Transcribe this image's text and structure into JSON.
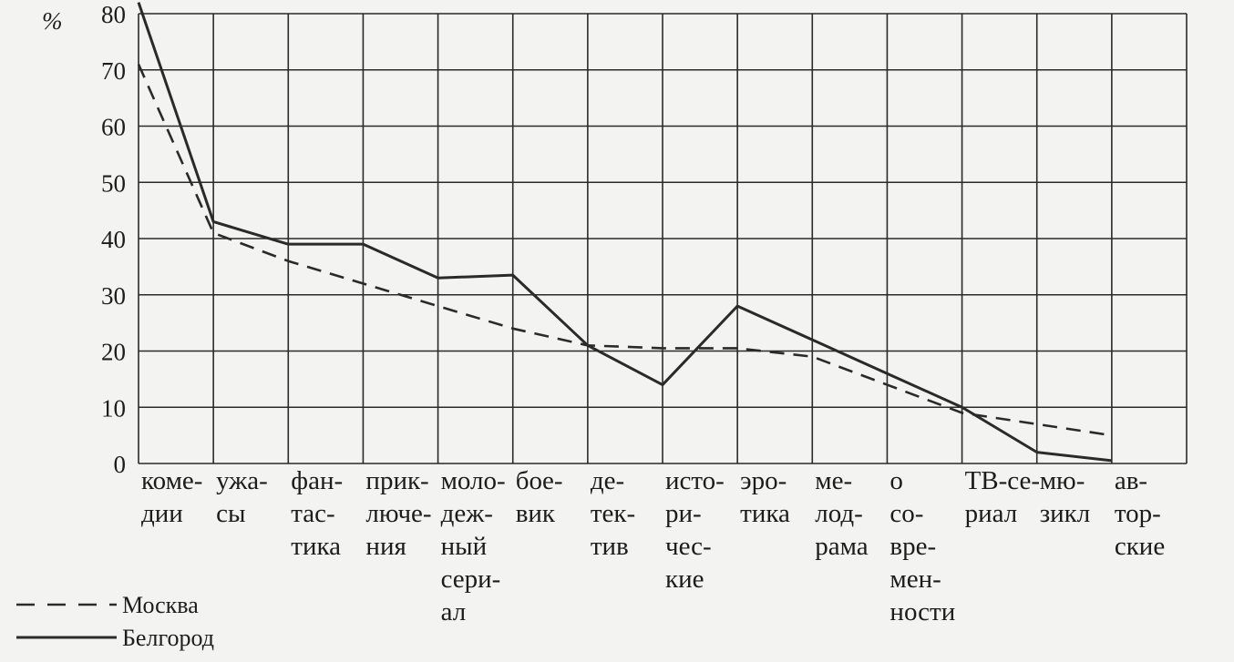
{
  "chart_data": {
    "type": "line",
    "y_unit_label": "%",
    "y_ticks": [
      "80",
      "70",
      "60",
      "50",
      "40",
      "30",
      "20",
      "10",
      "0"
    ],
    "ylim": [
      0,
      80
    ],
    "grid": true,
    "categories": [
      [
        "коме-",
        "дии"
      ],
      [
        "ужа-",
        "сы"
      ],
      [
        "фан-",
        "тас-",
        "тика"
      ],
      [
        "прик-",
        "люче-",
        "ния"
      ],
      [
        "моло-",
        "деж-",
        "ный",
        "сери-",
        "ал"
      ],
      [
        "боe-",
        "вик"
      ],
      [
        "де-",
        "тек-",
        "тив"
      ],
      [
        "исто-",
        "ри-",
        "чес-",
        "кие"
      ],
      [
        "эро-",
        "тика"
      ],
      [
        "ме-",
        "лод-",
        "рама"
      ],
      [
        "о",
        "со-",
        "вре-",
        "мен-",
        "ности"
      ],
      [
        "ТВ-се-",
        "риал"
      ],
      [
        "мю-",
        "зикл"
      ],
      [
        "ав-",
        "тор-",
        "ские"
      ]
    ],
    "series": [
      {
        "name": "Москва",
        "style": "dashed",
        "values": [
          71,
          41,
          36,
          32,
          28,
          24,
          21,
          20.5,
          20.5,
          19,
          14,
          9,
          7,
          5
        ]
      },
      {
        "name": "Белгород",
        "style": "solid",
        "values": [
          82,
          43,
          39,
          39,
          33,
          33.5,
          21,
          14,
          28,
          22,
          16,
          10,
          2,
          0.5
        ]
      }
    ],
    "legend": {
      "position": "bottom-left",
      "entries": [
        "Москва",
        "Белгород"
      ]
    },
    "colors": {
      "line": "#2a2a2a",
      "background": "#f3f4f1"
    }
  }
}
